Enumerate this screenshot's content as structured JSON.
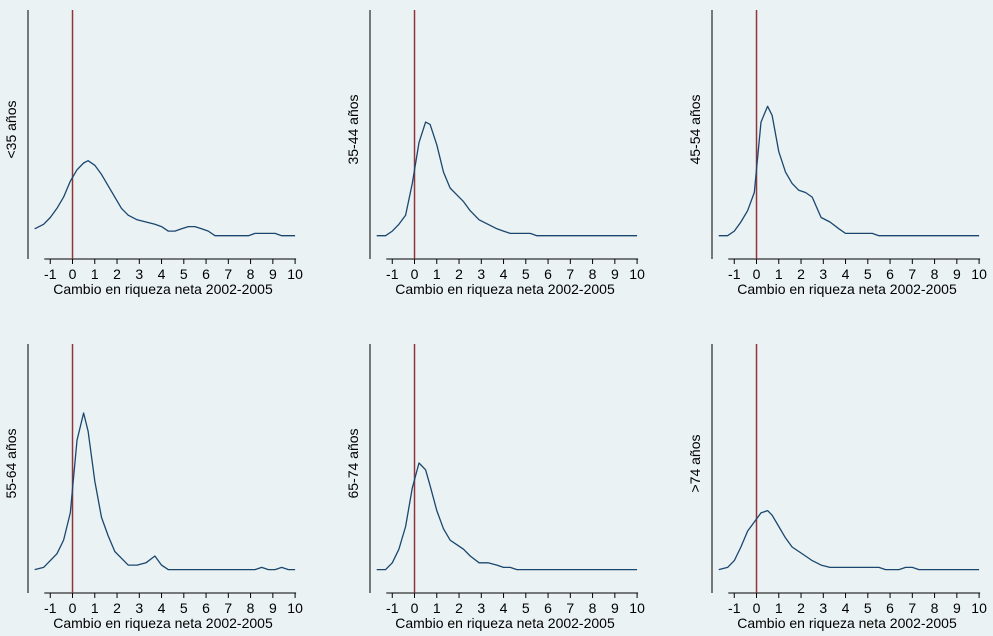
{
  "chart_data": [
    {
      "type": "line",
      "ylabel": "<35 años",
      "xlabel": "Cambio en riqueza neta 2002-2005",
      "xlim": [
        -2,
        10.4
      ],
      "ylim": [
        0,
        1
      ],
      "xticks": [
        "-1",
        "0",
        "1",
        "2",
        "3",
        "4",
        "5",
        "6",
        "7",
        "8",
        "9",
        "10"
      ],
      "ref_line_x": 0,
      "x": [
        -1.7,
        -1.3,
        -1.0,
        -0.7,
        -0.4,
        -0.1,
        0.2,
        0.5,
        0.7,
        1.0,
        1.3,
        1.6,
        1.9,
        2.2,
        2.5,
        2.9,
        3.3,
        3.7,
        4.0,
        4.3,
        4.6,
        4.9,
        5.2,
        5.5,
        5.8,
        6.1,
        6.4,
        6.7,
        7.0,
        7.3,
        7.6,
        7.9,
        8.2,
        8.5,
        8.8,
        9.1,
        9.4,
        9.7,
        10.0
      ],
      "y": [
        0.08,
        0.1,
        0.13,
        0.17,
        0.22,
        0.29,
        0.34,
        0.37,
        0.38,
        0.36,
        0.32,
        0.27,
        0.22,
        0.17,
        0.14,
        0.12,
        0.11,
        0.1,
        0.09,
        0.07,
        0.07,
        0.08,
        0.09,
        0.09,
        0.08,
        0.07,
        0.05,
        0.05,
        0.05,
        0.05,
        0.05,
        0.05,
        0.06,
        0.06,
        0.06,
        0.06,
        0.05,
        0.05,
        0.05
      ]
    },
    {
      "type": "line",
      "ylabel": "35-44 años",
      "xlabel": "Cambio en riqueza neta 2002-2005",
      "xlim": [
        -2,
        10.4
      ],
      "ylim": [
        0,
        1
      ],
      "xticks": [
        "-1",
        "0",
        "1",
        "2",
        "3",
        "4",
        "5",
        "6",
        "7",
        "8",
        "9",
        "10"
      ],
      "ref_line_x": 0,
      "x": [
        -1.7,
        -1.3,
        -1.0,
        -0.7,
        -0.4,
        -0.1,
        0.2,
        0.5,
        0.7,
        1.0,
        1.3,
        1.6,
        1.9,
        2.2,
        2.5,
        2.9,
        3.3,
        3.7,
        4.0,
        4.3,
        4.6,
        4.9,
        5.2,
        5.5,
        5.8,
        6.1,
        6.4,
        6.7,
        7.0,
        7.3,
        7.6,
        7.9,
        8.2,
        8.5,
        8.8,
        9.1,
        9.4,
        9.7,
        10.0
      ],
      "y": [
        0.05,
        0.05,
        0.07,
        0.1,
        0.14,
        0.28,
        0.46,
        0.55,
        0.54,
        0.45,
        0.33,
        0.26,
        0.23,
        0.2,
        0.16,
        0.12,
        0.1,
        0.08,
        0.07,
        0.06,
        0.06,
        0.06,
        0.06,
        0.05,
        0.05,
        0.05,
        0.05,
        0.05,
        0.05,
        0.05,
        0.05,
        0.05,
        0.05,
        0.05,
        0.05,
        0.05,
        0.05,
        0.05,
        0.05
      ]
    },
    {
      "type": "line",
      "ylabel": "45-54 años",
      "xlabel": "Cambio en riqueza neta 2002-2005",
      "xlim": [
        -2,
        10.4
      ],
      "ylim": [
        0,
        1
      ],
      "xticks": [
        "-1",
        "0",
        "1",
        "2",
        "3",
        "4",
        "5",
        "6",
        "7",
        "8",
        "9",
        "10"
      ],
      "ref_line_x": 0,
      "x": [
        -1.7,
        -1.3,
        -1.0,
        -0.7,
        -0.4,
        -0.1,
        0.2,
        0.5,
        0.7,
        1.0,
        1.3,
        1.6,
        1.9,
        2.2,
        2.5,
        2.9,
        3.3,
        3.7,
        4.0,
        4.3,
        4.6,
        4.9,
        5.2,
        5.5,
        5.8,
        6.1,
        6.4,
        6.7,
        7.0,
        7.3,
        7.6,
        7.9,
        8.2,
        8.5,
        8.8,
        9.1,
        9.4,
        9.7,
        10.0
      ],
      "y": [
        0.05,
        0.05,
        0.07,
        0.11,
        0.16,
        0.24,
        0.55,
        0.62,
        0.58,
        0.42,
        0.33,
        0.28,
        0.25,
        0.24,
        0.22,
        0.13,
        0.11,
        0.08,
        0.06,
        0.06,
        0.06,
        0.06,
        0.06,
        0.05,
        0.05,
        0.05,
        0.05,
        0.05,
        0.05,
        0.05,
        0.05,
        0.05,
        0.05,
        0.05,
        0.05,
        0.05,
        0.05,
        0.05,
        0.05
      ]
    },
    {
      "type": "line",
      "ylabel": "55-64 años",
      "xlabel": "Cambio en riqueza neta 2002-2005",
      "xlim": [
        -2,
        10.4
      ],
      "ylim": [
        0,
        1
      ],
      "xticks": [
        "-1",
        "0",
        "1",
        "2",
        "3",
        "4",
        "5",
        "6",
        "7",
        "8",
        "9",
        "10"
      ],
      "ref_line_x": 0,
      "x": [
        -1.7,
        -1.3,
        -1.0,
        -0.7,
        -0.4,
        -0.1,
        0.2,
        0.5,
        0.7,
        1.0,
        1.3,
        1.6,
        1.9,
        2.2,
        2.5,
        2.9,
        3.3,
        3.7,
        4.0,
        4.3,
        4.6,
        4.9,
        5.2,
        5.5,
        5.8,
        6.1,
        6.4,
        6.7,
        7.0,
        7.3,
        7.6,
        7.9,
        8.2,
        8.5,
        8.8,
        9.1,
        9.4,
        9.7,
        10.0
      ],
      "y": [
        0.05,
        0.06,
        0.09,
        0.12,
        0.18,
        0.3,
        0.62,
        0.74,
        0.66,
        0.44,
        0.28,
        0.2,
        0.13,
        0.1,
        0.07,
        0.07,
        0.08,
        0.11,
        0.07,
        0.05,
        0.05,
        0.05,
        0.05,
        0.05,
        0.05,
        0.05,
        0.05,
        0.05,
        0.05,
        0.05,
        0.05,
        0.05,
        0.05,
        0.06,
        0.05,
        0.05,
        0.06,
        0.05,
        0.05
      ]
    },
    {
      "type": "line",
      "ylabel": "65-74 años",
      "xlabel": "Cambio en riqueza neta 2002-2005",
      "xlim": [
        -2,
        10.4
      ],
      "ylim": [
        0,
        1
      ],
      "xticks": [
        "-1",
        "0",
        "1",
        "2",
        "3",
        "4",
        "5",
        "6",
        "7",
        "8",
        "9",
        "10"
      ],
      "ref_line_x": 0,
      "x": [
        -1.7,
        -1.3,
        -1.0,
        -0.7,
        -0.4,
        -0.1,
        0.2,
        0.5,
        0.7,
        1.0,
        1.3,
        1.6,
        1.9,
        2.2,
        2.5,
        2.9,
        3.3,
        3.7,
        4.0,
        4.3,
        4.6,
        4.9,
        5.2,
        5.5,
        5.8,
        6.1,
        6.4,
        6.7,
        7.0,
        7.3,
        7.6,
        7.9,
        8.2,
        8.5,
        8.8,
        9.1,
        9.4,
        9.7,
        10.0
      ],
      "y": [
        0.05,
        0.05,
        0.08,
        0.14,
        0.24,
        0.41,
        0.52,
        0.49,
        0.42,
        0.31,
        0.23,
        0.18,
        0.16,
        0.14,
        0.11,
        0.08,
        0.08,
        0.07,
        0.06,
        0.06,
        0.05,
        0.05,
        0.05,
        0.05,
        0.05,
        0.05,
        0.05,
        0.05,
        0.05,
        0.05,
        0.05,
        0.05,
        0.05,
        0.05,
        0.05,
        0.05,
        0.05,
        0.05,
        0.05
      ]
    },
    {
      "type": "line",
      "ylabel": ">74 años",
      "xlabel": "Cambio en riqueza neta 2002-2005",
      "xlim": [
        -2,
        10.4
      ],
      "ylim": [
        0,
        1
      ],
      "xticks": [
        "-1",
        "0",
        "1",
        "2",
        "3",
        "4",
        "5",
        "6",
        "7",
        "8",
        "9",
        "10"
      ],
      "ref_line_x": 0,
      "x": [
        -1.7,
        -1.3,
        -1.0,
        -0.7,
        -0.4,
        -0.1,
        0.2,
        0.5,
        0.7,
        1.0,
        1.3,
        1.6,
        1.9,
        2.2,
        2.5,
        2.9,
        3.3,
        3.7,
        4.0,
        4.3,
        4.6,
        4.9,
        5.2,
        5.5,
        5.8,
        6.1,
        6.4,
        6.7,
        7.0,
        7.3,
        7.6,
        7.9,
        8.2,
        8.5,
        8.8,
        9.1,
        9.4,
        9.7,
        10.0
      ],
      "y": [
        0.05,
        0.06,
        0.09,
        0.15,
        0.22,
        0.26,
        0.3,
        0.31,
        0.29,
        0.24,
        0.19,
        0.15,
        0.13,
        0.11,
        0.09,
        0.07,
        0.06,
        0.06,
        0.06,
        0.06,
        0.06,
        0.06,
        0.06,
        0.06,
        0.05,
        0.05,
        0.05,
        0.06,
        0.06,
        0.05,
        0.05,
        0.05,
        0.05,
        0.05,
        0.05,
        0.05,
        0.05,
        0.05,
        0.05
      ]
    }
  ],
  "colors": {
    "background": "#eaf2f3",
    "axis": "#000000",
    "density_line": "#1a476f",
    "reference_line": "#90353b"
  }
}
